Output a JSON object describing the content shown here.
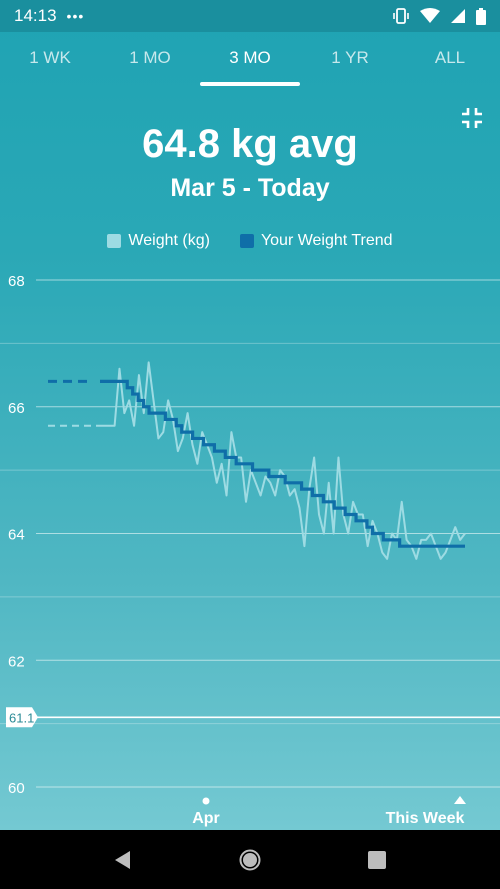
{
  "status_bar": {
    "time": "14:13",
    "dots": "•••"
  },
  "tabs": [
    {
      "label": "1 WK",
      "active": false
    },
    {
      "label": "1 MO",
      "active": false
    },
    {
      "label": "3 MO",
      "active": true
    },
    {
      "label": "1 YR",
      "active": false
    },
    {
      "label": "ALL",
      "active": false
    }
  ],
  "summary": {
    "average": "64.8 kg avg",
    "range": "Mar 5 - Today"
  },
  "legend": {
    "weight": "Weight (kg)",
    "trend": "Your Weight Trend",
    "weight_color": "#9ddbe3",
    "trend_color": "#0f6ea8"
  },
  "chart_data": {
    "type": "line",
    "ylim": [
      60,
      68
    ],
    "y_ticks": [
      "68",
      "66",
      "64",
      "62",
      "60"
    ],
    "goal_label": "61.1",
    "goal_value": 61.1,
    "x_labels": [
      "Apr",
      "This Week"
    ],
    "series": [
      {
        "name": "Weight (kg)",
        "values": [
          65.7,
          65.7,
          65.7,
          65.7,
          66.6,
          65.9,
          66.1,
          65.7,
          66.5,
          65.9,
          66.7,
          66.1,
          65.5,
          65.6,
          66.1,
          65.8,
          65.3,
          65.5,
          65.9,
          65.4,
          65.1,
          65.6,
          65.4,
          65.2,
          64.8,
          65.1,
          64.6,
          65.6,
          65.2,
          65.2,
          64.5,
          65.0,
          64.8,
          64.6,
          64.9,
          64.8,
          64.6,
          65.0,
          64.9,
          64.6,
          64.7,
          64.4,
          63.8,
          64.7,
          65.2,
          64.3,
          64.0,
          64.8,
          64.0,
          65.2,
          64.3,
          64.0,
          64.5,
          64.3,
          64.3,
          63.8,
          64.2,
          64.0,
          63.7,
          63.6,
          64.0,
          63.9,
          64.5,
          63.9,
          63.8,
          63.6,
          63.9,
          63.9,
          64.0,
          63.8,
          63.6,
          63.7,
          63.9,
          64.1,
          63.9,
          64.0
        ]
      },
      {
        "name": "Your Weight Trend",
        "values": [
          66.4,
          66.4,
          66.4,
          66.4,
          66.4,
          66.3,
          66.2,
          66.1,
          66.0,
          65.9,
          65.9,
          65.9,
          65.8,
          65.8,
          65.7,
          65.6,
          65.6,
          65.5,
          65.5,
          65.4,
          65.4,
          65.3,
          65.3,
          65.2,
          65.2,
          65.1,
          65.1,
          65.1,
          65.0,
          65.0,
          65.0,
          64.9,
          64.9,
          64.9,
          64.8,
          64.8,
          64.8,
          64.7,
          64.7,
          64.6,
          64.6,
          64.5,
          64.5,
          64.4,
          64.4,
          64.3,
          64.3,
          64.2,
          64.2,
          64.1,
          64.0,
          64.0,
          63.9,
          63.9,
          63.9,
          63.8,
          63.8,
          63.8,
          63.8,
          63.8,
          63.8,
          63.8,
          63.8,
          63.8,
          63.8,
          63.8,
          63.8,
          63.8
        ]
      }
    ]
  },
  "navigation": {
    "back": "back-icon",
    "home": "home-icon",
    "recents": "recents-icon"
  }
}
